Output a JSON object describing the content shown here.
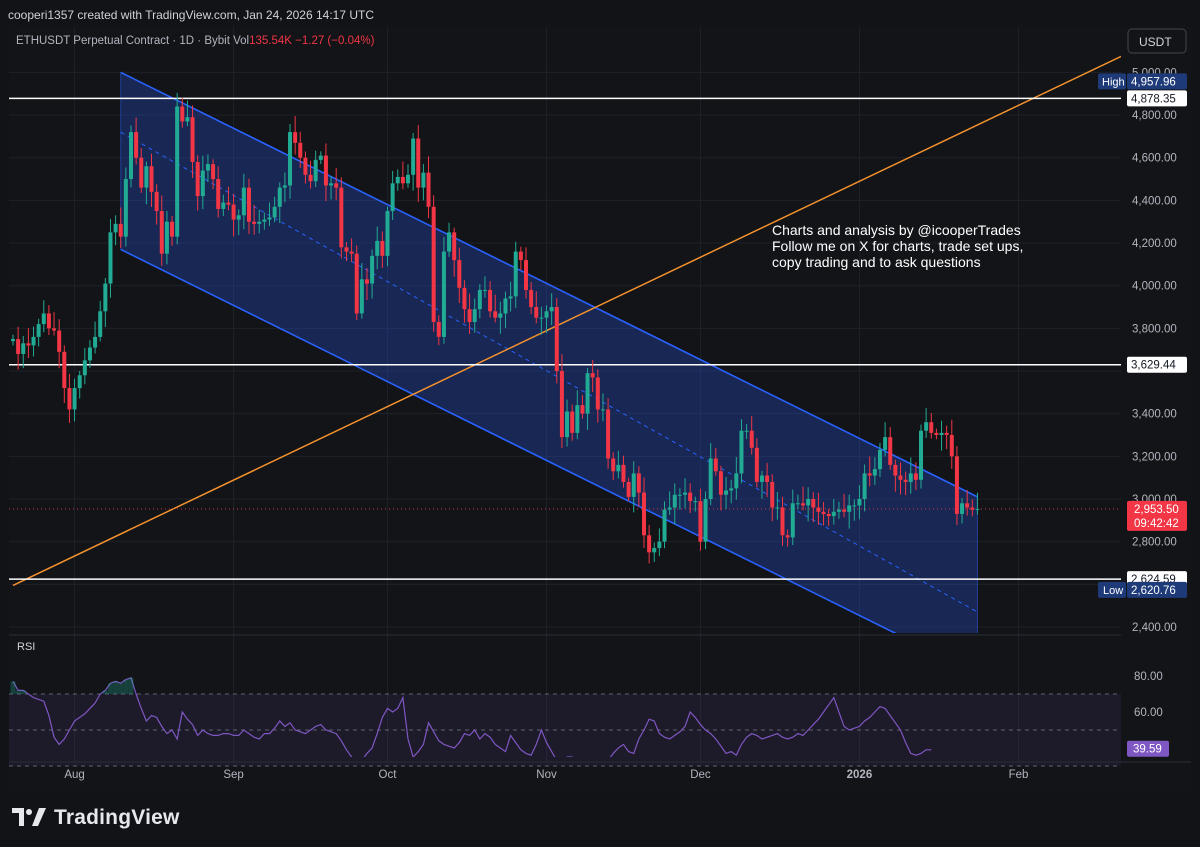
{
  "header": {
    "credit": "cooperi1357 created with TradingView.com, Jan 24, 2026 14:17 UTC"
  },
  "legend": {
    "symbol": "ETHUSDT Perpetual Contract · 1D · Bybit",
    "vol_label": "Vol",
    "vol_value": "135.54K",
    "change": "−1.27 (−0.04%)"
  },
  "currency": "USDT",
  "annotation": [
    "Charts and analysis by @icooperTrades",
    "Follow me on X for charts, trade set ups,",
    "copy trading and to ask questions"
  ],
  "footer": {
    "brand": "TradingView",
    "logo_icon": "tradingview-logo-icon"
  },
  "colors": {
    "background": "#121418",
    "up": "#22ab94",
    "down": "#f23645",
    "channel": "#2962ff",
    "trendline": "#f5922d",
    "rsi": "#7e57c2",
    "price_badge": "#f23645",
    "rsi_badge": "#7e57c2"
  },
  "chart_data": {
    "type": "candlestick",
    "symbol": "ETHUSDT Perpetual Contract",
    "interval": "1D",
    "exchange": "Bybit",
    "y_axis": {
      "min": 2400,
      "max": 5000,
      "ticks": [
        "5,000.00",
        "4,800.00",
        "4,600.00",
        "4,400.00",
        "4,200.00",
        "4,000.00",
        "3,800.00",
        "3,400.00",
        "3,200.00",
        "3,000.00",
        "2,800.00",
        "2,400.00"
      ],
      "position": "right"
    },
    "x_axis": {
      "start": "2025-07-20",
      "end": "2026-02-21",
      "ticks": [
        {
          "label": "Aug",
          "date": "2025-08-01"
        },
        {
          "label": "Sep",
          "date": "2025-09-01"
        },
        {
          "label": "Oct",
          "date": "2025-10-01"
        },
        {
          "label": "Nov",
          "date": "2025-11-01"
        },
        {
          "label": "Dec",
          "date": "2025-12-01"
        },
        {
          "label": "2026",
          "date": "2026-01-01"
        },
        {
          "label": "Feb",
          "date": "2026-02-01"
        }
      ]
    },
    "grid": true,
    "candles": [
      {
        "date": "2025-07-20",
        "close": 3750
      },
      {
        "date": "2025-07-21",
        "close": 3680
      },
      {
        "date": "2025-07-22",
        "close": 3730
      },
      {
        "date": "2025-07-23",
        "close": 3720
      },
      {
        "date": "2025-07-24",
        "close": 3760
      },
      {
        "date": "2025-07-25",
        "close": 3820
      },
      {
        "date": "2025-07-26",
        "close": 3870
      },
      {
        "date": "2025-07-27",
        "close": 3800
      },
      {
        "date": "2025-07-28",
        "close": 3790
      },
      {
        "date": "2025-07-29",
        "close": 3690
      },
      {
        "date": "2025-07-30",
        "close": 3520
      },
      {
        "date": "2025-07-31",
        "close": 3420
      },
      {
        "date": "2025-08-01",
        "close": 3520
      },
      {
        "date": "2025-08-02",
        "close": 3580
      },
      {
        "date": "2025-08-03",
        "close": 3650
      },
      {
        "date": "2025-08-04",
        "close": 3710
      },
      {
        "date": "2025-08-05",
        "close": 3760
      },
      {
        "date": "2025-08-06",
        "close": 3880
      },
      {
        "date": "2025-08-07",
        "close": 4010
      },
      {
        "date": "2025-08-08",
        "close": 4250
      },
      {
        "date": "2025-08-09",
        "close": 4290
      },
      {
        "date": "2025-08-10",
        "close": 4230
      },
      {
        "date": "2025-08-11",
        "close": 4500
      },
      {
        "date": "2025-08-12",
        "close": 4720
      },
      {
        "date": "2025-08-13",
        "close": 4600
      },
      {
        "date": "2025-08-14",
        "close": 4460
      },
      {
        "date": "2025-08-15",
        "close": 4560
      },
      {
        "date": "2025-08-16",
        "close": 4440
      },
      {
        "date": "2025-08-17",
        "close": 4350
      },
      {
        "date": "2025-08-18",
        "close": 4150
      },
      {
        "date": "2025-08-19",
        "close": 4300
      },
      {
        "date": "2025-08-20",
        "close": 4230
      },
      {
        "date": "2025-08-21",
        "close": 4840
      },
      {
        "date": "2025-08-22",
        "close": 4770
      },
      {
        "date": "2025-08-23",
        "close": 4790
      },
      {
        "date": "2025-08-24",
        "close": 4580
      },
      {
        "date": "2025-08-25",
        "close": 4420
      },
      {
        "date": "2025-08-26",
        "close": 4540
      },
      {
        "date": "2025-08-27",
        "close": 4570
      },
      {
        "date": "2025-08-28",
        "close": 4500
      },
      {
        "date": "2025-08-29",
        "close": 4360
      },
      {
        "date": "2025-08-30",
        "close": 4390
      },
      {
        "date": "2025-08-31",
        "close": 4380
      },
      {
        "date": "2025-09-01",
        "close": 4310
      },
      {
        "date": "2025-09-02",
        "close": 4330
      },
      {
        "date": "2025-09-03",
        "close": 4460
      },
      {
        "date": "2025-09-04",
        "close": 4300
      },
      {
        "date": "2025-09-05",
        "close": 4290
      },
      {
        "date": "2025-09-06",
        "close": 4300
      },
      {
        "date": "2025-09-07",
        "close": 4310
      },
      {
        "date": "2025-09-08",
        "close": 4320
      },
      {
        "date": "2025-09-09",
        "close": 4370
      },
      {
        "date": "2025-09-10",
        "close": 4460
      },
      {
        "date": "2025-09-11",
        "close": 4470
      },
      {
        "date": "2025-09-12",
        "close": 4720
      },
      {
        "date": "2025-09-13",
        "close": 4670
      },
      {
        "date": "2025-09-14",
        "close": 4600
      },
      {
        "date": "2025-09-15",
        "close": 4520
      },
      {
        "date": "2025-09-16",
        "close": 4490
      },
      {
        "date": "2025-09-17",
        "close": 4590
      },
      {
        "date": "2025-09-18",
        "close": 4610
      },
      {
        "date": "2025-09-19",
        "close": 4470
      },
      {
        "date": "2025-09-20",
        "close": 4480
      },
      {
        "date": "2025-09-21",
        "close": 4460
      },
      {
        "date": "2025-09-22",
        "close": 4180
      },
      {
        "date": "2025-09-23",
        "close": 4160
      },
      {
        "date": "2025-09-24",
        "close": 4150
      },
      {
        "date": "2025-09-25",
        "close": 3870
      },
      {
        "date": "2025-09-26",
        "close": 4030
      },
      {
        "date": "2025-09-27",
        "close": 4010
      },
      {
        "date": "2025-09-28",
        "close": 4140
      },
      {
        "date": "2025-09-29",
        "close": 4210
      },
      {
        "date": "2025-09-30",
        "close": 4140
      },
      {
        "date": "2025-10-01",
        "close": 4350
      },
      {
        "date": "2025-10-02",
        "close": 4480
      },
      {
        "date": "2025-10-03",
        "close": 4510
      },
      {
        "date": "2025-10-04",
        "close": 4480
      },
      {
        "date": "2025-10-05",
        "close": 4520
      },
      {
        "date": "2025-10-06",
        "close": 4690
      },
      {
        "date": "2025-10-07",
        "close": 4460
      },
      {
        "date": "2025-10-08",
        "close": 4530
      },
      {
        "date": "2025-10-09",
        "close": 4370
      },
      {
        "date": "2025-10-10",
        "close": 3830
      },
      {
        "date": "2025-10-11",
        "close": 3760
      },
      {
        "date": "2025-10-12",
        "close": 4160
      },
      {
        "date": "2025-10-13",
        "close": 4250
      },
      {
        "date": "2025-10-14",
        "close": 4120
      },
      {
        "date": "2025-10-15",
        "close": 3990
      },
      {
        "date": "2025-10-16",
        "close": 3890
      },
      {
        "date": "2025-10-17",
        "close": 3830
      },
      {
        "date": "2025-10-18",
        "close": 3890
      },
      {
        "date": "2025-10-19",
        "close": 3980
      },
      {
        "date": "2025-10-20",
        "close": 3980
      },
      {
        "date": "2025-10-21",
        "close": 3880
      },
      {
        "date": "2025-10-22",
        "close": 3850
      },
      {
        "date": "2025-10-23",
        "close": 3870
      },
      {
        "date": "2025-10-24",
        "close": 3940
      },
      {
        "date": "2025-10-25",
        "close": 3950
      },
      {
        "date": "2025-10-26",
        "close": 4160
      },
      {
        "date": "2025-10-27",
        "close": 4120
      },
      {
        "date": "2025-10-28",
        "close": 3980
      },
      {
        "date": "2025-10-29",
        "close": 3900
      },
      {
        "date": "2025-10-30",
        "close": 3850
      },
      {
        "date": "2025-10-31",
        "close": 3850
      },
      {
        "date": "2025-11-01",
        "close": 3880
      },
      {
        "date": "2025-11-02",
        "close": 3900
      },
      {
        "date": "2025-11-03",
        "close": 3600
      },
      {
        "date": "2025-11-04",
        "close": 3290
      },
      {
        "date": "2025-11-05",
        "close": 3410
      },
      {
        "date": "2025-11-06",
        "close": 3310
      },
      {
        "date": "2025-11-07",
        "close": 3440
      },
      {
        "date": "2025-11-08",
        "close": 3400
      },
      {
        "date": "2025-11-09",
        "close": 3590
      },
      {
        "date": "2025-11-10",
        "close": 3570
      },
      {
        "date": "2025-11-11",
        "close": 3420
      },
      {
        "date": "2025-11-12",
        "close": 3420
      },
      {
        "date": "2025-11-13",
        "close": 3190
      },
      {
        "date": "2025-11-14",
        "close": 3130
      },
      {
        "date": "2025-11-15",
        "close": 3160
      },
      {
        "date": "2025-11-16",
        "close": 3080
      },
      {
        "date": "2025-11-17",
        "close": 3010
      },
      {
        "date": "2025-11-18",
        "close": 3120
      },
      {
        "date": "2025-11-19",
        "close": 3030
      },
      {
        "date": "2025-11-20",
        "close": 2830
      },
      {
        "date": "2025-11-21",
        "close": 2750
      },
      {
        "date": "2025-11-22",
        "close": 2770
      },
      {
        "date": "2025-11-23",
        "close": 2800
      },
      {
        "date": "2025-11-24",
        "close": 2950
      },
      {
        "date": "2025-11-25",
        "close": 2960
      },
      {
        "date": "2025-11-26",
        "close": 3020
      },
      {
        "date": "2025-11-27",
        "close": 3020
      },
      {
        "date": "2025-11-28",
        "close": 3030
      },
      {
        "date": "2025-11-29",
        "close": 2990
      },
      {
        "date": "2025-11-30",
        "close": 2990
      },
      {
        "date": "2025-12-01",
        "close": 2800
      },
      {
        "date": "2025-12-02",
        "close": 3000
      },
      {
        "date": "2025-12-03",
        "close": 3190
      },
      {
        "date": "2025-12-04",
        "close": 3130
      },
      {
        "date": "2025-12-05",
        "close": 3020
      },
      {
        "date": "2025-12-06",
        "close": 3040
      },
      {
        "date": "2025-12-07",
        "close": 3050
      },
      {
        "date": "2025-12-08",
        "close": 3120
      },
      {
        "date": "2025-12-09",
        "close": 3320
      },
      {
        "date": "2025-12-10",
        "close": 3320
      },
      {
        "date": "2025-12-11",
        "close": 3240
      },
      {
        "date": "2025-12-12",
        "close": 3080
      },
      {
        "date": "2025-12-13",
        "close": 3110
      },
      {
        "date": "2025-12-14",
        "close": 3080
      },
      {
        "date": "2025-12-15",
        "close": 2960
      },
      {
        "date": "2025-12-16",
        "close": 2960
      },
      {
        "date": "2025-12-17",
        "close": 2830
      },
      {
        "date": "2025-12-18",
        "close": 2820
      },
      {
        "date": "2025-12-19",
        "close": 2980
      },
      {
        "date": "2025-12-20",
        "close": 2980
      },
      {
        "date": "2025-12-21",
        "close": 2970
      },
      {
        "date": "2025-12-22",
        "close": 3000
      },
      {
        "date": "2025-12-23",
        "close": 2960
      },
      {
        "date": "2025-12-24",
        "close": 2940
      },
      {
        "date": "2025-12-25",
        "close": 2930
      },
      {
        "date": "2025-12-26",
        "close": 2920
      },
      {
        "date": "2025-12-27",
        "close": 2940
      },
      {
        "date": "2025-12-28",
        "close": 2950
      },
      {
        "date": "2025-12-29",
        "close": 2940
      },
      {
        "date": "2025-12-30",
        "close": 2970
      },
      {
        "date": "2025-12-31",
        "close": 2970
      },
      {
        "date": "2026-01-01",
        "close": 3000
      },
      {
        "date": "2026-01-02",
        "close": 3120
      },
      {
        "date": "2026-01-03",
        "close": 3110
      },
      {
        "date": "2026-01-04",
        "close": 3140
      },
      {
        "date": "2026-01-05",
        "close": 3230
      },
      {
        "date": "2026-01-06",
        "close": 3290
      },
      {
        "date": "2026-01-07",
        "close": 3160
      },
      {
        "date": "2026-01-08",
        "close": 3110
      },
      {
        "date": "2026-01-09",
        "close": 3090
      },
      {
        "date": "2026-01-10",
        "close": 3080
      },
      {
        "date": "2026-01-11",
        "close": 3120
      },
      {
        "date": "2026-01-12",
        "close": 3090
      },
      {
        "date": "2026-01-13",
        "close": 3320
      },
      {
        "date": "2026-01-14",
        "close": 3360
      },
      {
        "date": "2026-01-15",
        "close": 3310
      },
      {
        "date": "2026-01-16",
        "close": 3300
      },
      {
        "date": "2026-01-17",
        "close": 3310
      },
      {
        "date": "2026-01-18",
        "close": 3300
      },
      {
        "date": "2026-01-19",
        "close": 3200
      },
      {
        "date": "2026-01-20",
        "close": 2930
      },
      {
        "date": "2026-01-21",
        "close": 2980
      },
      {
        "date": "2026-01-22",
        "close": 2960
      },
      {
        "date": "2026-01-23",
        "close": 2950
      },
      {
        "date": "2026-01-24",
        "close": 2953.5
      }
    ],
    "horizontal_levels": [
      {
        "value": 4878.35,
        "label": "4,878.35"
      },
      {
        "value": 3629.44,
        "label": "3,629.44"
      },
      {
        "value": 2624.59,
        "label": "2,624.59"
      }
    ],
    "high": {
      "label": "High",
      "value": 4957.96,
      "text": "4,957.96"
    },
    "low": {
      "label": "Low",
      "value": 2620.76,
      "text": "2,620.76"
    },
    "last_price": {
      "value": 2953.5,
      "text": "2,953.50",
      "countdown": "09:42:42"
    },
    "channel": {
      "upper": [
        {
          "date": "2025-08-10",
          "price": 5000
        },
        {
          "date": "2026-01-24",
          "price": 3010
        }
      ],
      "lower": [
        {
          "date": "2025-08-10",
          "price": 4170
        },
        {
          "date": "2026-01-24",
          "price": 2180
        }
      ],
      "mid": [
        {
          "date": "2025-08-10",
          "price": 4720
        },
        {
          "date": "2026-01-24",
          "price": 2470
        }
      ]
    },
    "trendline": [
      {
        "date": "2025-07-20",
        "price": 2595
      },
      {
        "date": "2026-02-21",
        "price": 5075
      }
    ],
    "rsi": {
      "label": "RSI",
      "ticks": [
        "80.00",
        "60.00"
      ],
      "levels": [
        70,
        50,
        30
      ],
      "current": 39.59,
      "current_text": "39.59",
      "values": [
        77,
        72,
        72,
        70,
        68,
        67,
        66,
        58,
        46,
        42,
        45,
        50,
        55,
        57,
        59,
        62,
        65,
        70,
        72,
        76,
        77,
        76,
        78,
        79,
        70,
        62,
        55,
        58,
        57,
        52,
        48,
        50,
        45,
        60,
        56,
        53,
        47,
        50,
        48,
        47,
        47,
        48,
        48,
        47,
        47,
        50,
        48,
        46,
        45,
        48,
        48,
        51,
        55,
        52,
        54,
        50,
        49,
        48,
        50,
        52,
        53,
        50,
        49,
        48,
        44,
        39,
        35,
        30,
        33,
        37,
        40,
        48,
        57,
        62,
        60,
        62,
        68,
        45,
        35,
        38,
        42,
        54,
        49,
        44,
        42,
        41,
        40,
        43,
        48,
        47,
        50,
        45,
        48,
        46,
        42,
        40,
        38,
        47,
        43,
        39,
        37,
        36,
        42,
        50,
        43,
        38,
        33,
        31,
        35,
        35,
        33,
        31,
        31,
        31,
        32,
        34,
        33,
        37,
        40,
        42,
        38,
        37,
        45,
        50,
        56,
        55,
        48,
        46,
        45,
        47,
        49,
        52,
        60,
        57,
        53,
        50,
        48,
        45,
        41,
        37,
        38,
        36,
        42,
        46,
        48,
        47,
        45,
        46,
        47,
        48,
        46,
        45,
        46,
        48,
        47,
        50,
        53,
        56,
        60,
        64,
        68,
        60,
        52,
        50,
        51,
        52,
        55,
        57,
        60,
        63,
        62,
        58,
        54,
        50,
        43,
        37,
        36,
        37,
        39,
        39
      ]
    }
  }
}
